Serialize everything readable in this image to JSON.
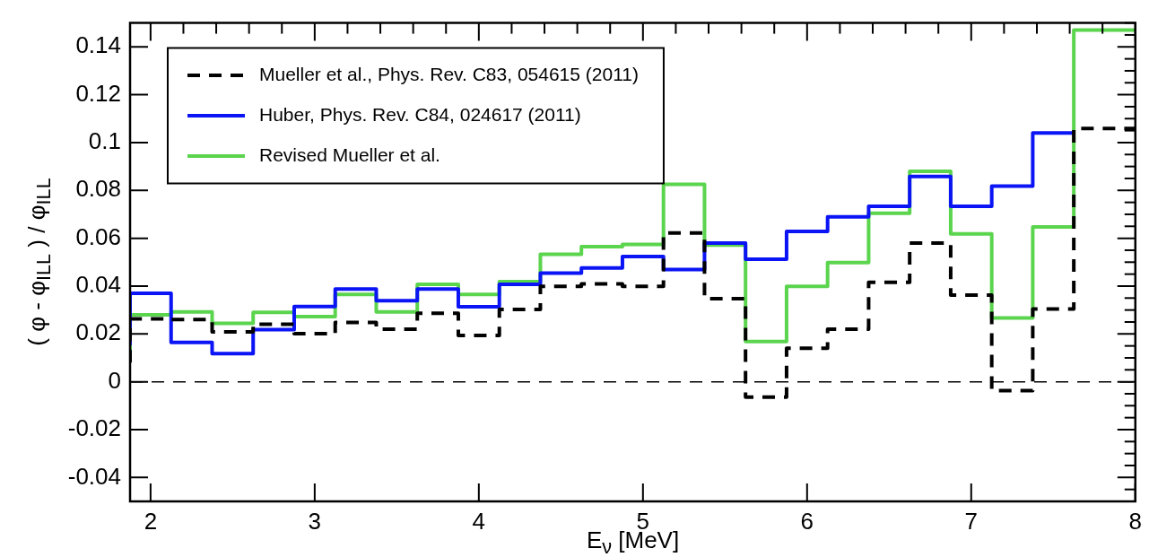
{
  "chart_data": {
    "type": "step",
    "xlabel": "E$_{ν}$ [MeV]",
    "ylabel": "( φ - φ$_{ILL}$ ) / φ$_{ILL}$",
    "x": [
      1.875,
      2.125,
      2.375,
      2.625,
      2.875,
      3.125,
      3.375,
      3.625,
      3.875,
      4.125,
      4.375,
      4.625,
      4.875,
      5.125,
      5.375,
      5.625,
      5.875,
      6.125,
      6.375,
      6.625,
      6.875,
      7.125,
      7.375,
      7.625,
      7.875
    ],
    "series": [
      {
        "name": "Mueller et al., Phys. Rev. C83, 054615 (2011)",
        "color": "#000000",
        "line_style": "dashed",
        "values": [
          0.008,
          0.0263,
          0.026,
          0.0209,
          0.0241,
          0.0201,
          0.0248,
          0.022,
          0.0286,
          0.0194,
          0.0302,
          0.0399,
          0.0409,
          0.0399,
          0.0622,
          0.0347,
          -0.0064,
          0.014,
          0.022,
          0.0416,
          0.058,
          0.0362,
          -0.0037,
          0.0304,
          0.1059
        ]
      },
      {
        "name": "Huber, Phys. Rev. C84, 024617 (2011)",
        "color": "#0a14f5",
        "line_style": "solid",
        "values": [
          0.0153,
          0.037,
          0.0165,
          0.0118,
          0.0218,
          0.0315,
          0.0388,
          0.0339,
          0.0388,
          0.0314,
          0.0407,
          0.0454,
          0.0476,
          0.0524,
          0.0469,
          0.058,
          0.0512,
          0.0629,
          0.069,
          0.0734,
          0.0858,
          0.0734,
          0.0818,
          0.104,
          null
        ]
      },
      {
        "name": "Revised Mueller et al.",
        "color": "#5bd44e",
        "line_style": "solid",
        "values": [
          0.0088,
          0.028,
          0.0292,
          0.0244,
          0.029,
          0.0272,
          0.0365,
          0.0292,
          0.0407,
          0.0365,
          0.0419,
          0.0533,
          0.0565,
          0.0574,
          0.0825,
          0.0571,
          0.0168,
          0.0399,
          0.0498,
          0.0705,
          0.088,
          0.0618,
          0.0267,
          0.0647,
          0.147
        ]
      }
    ],
    "xlim": [
      1.875,
      8.0
    ],
    "xticks": [
      2,
      3,
      4,
      5,
      6,
      7,
      8
    ],
    "ylim": [
      -0.05,
      0.15
    ],
    "yticks": [
      -0.04,
      -0.02,
      0,
      0.02,
      0.04,
      0.06,
      0.08,
      0.1,
      0.12,
      0.14
    ],
    "ref_lines": [
      {
        "axis": "y",
        "value": 0,
        "color": "#000000",
        "line_style": "dashed"
      }
    ],
    "grid": false,
    "legend": "top left"
  }
}
